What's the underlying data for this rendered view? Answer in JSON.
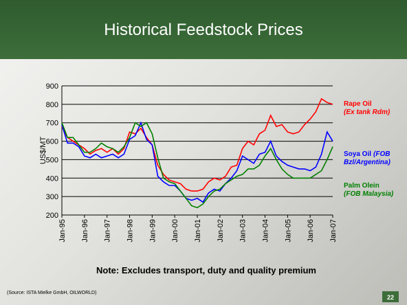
{
  "title": "Historical Feedstock Prices",
  "note": "Note: Excludes transport, duty and quality premium",
  "source": "(Source: ISTA Mielke GmbH, OILWORLD)",
  "page_number": "22",
  "chart_data": {
    "type": "line",
    "y_label": "US$/MT",
    "categories": [
      "Jan-95",
      null,
      null,
      null,
      "Jan-96",
      null,
      null,
      null,
      "Jan-97",
      null,
      null,
      null,
      "Jan-98",
      null,
      null,
      null,
      "Jan-99",
      null,
      null,
      null,
      "Jan-00",
      null,
      null,
      null,
      "Jan-01",
      null,
      null,
      null,
      "Jan-02",
      null,
      null,
      null,
      "Jan-03",
      null,
      null,
      null,
      "Jan-04",
      null,
      null,
      null,
      "Jan-05",
      null,
      null,
      null,
      "Jan-06",
      null,
      null,
      null,
      "Jan-07"
    ],
    "ylim": [
      200,
      900
    ],
    "yticks": [
      200,
      300,
      400,
      500,
      600,
      700,
      800,
      900
    ],
    "grid": true,
    "series": [
      {
        "name": "Rape Oil",
        "legend_note": [
          "(Ex tank Rdm)"
        ],
        "color": "#ff0000",
        "values": [
          680,
          620,
          600,
          580,
          560,
          530,
          550,
          560,
          540,
          560,
          530,
          560,
          650,
          640,
          670,
          620,
          580,
          470,
          420,
          390,
          380,
          370,
          340,
          330,
          330,
          340,
          380,
          400,
          390,
          410,
          460,
          470,
          560,
          600,
          580,
          640,
          660,
          740,
          680,
          690,
          650,
          640,
          650,
          690,
          720,
          760,
          830,
          810,
          800
        ]
      },
      {
        "name": "Soya Oil",
        "legend_note": [
          "(FOB",
          "Bzl/Argentina)"
        ],
        "color": "#0000ff",
        "values": [
          690,
          590,
          590,
          570,
          520,
          510,
          530,
          510,
          520,
          530,
          510,
          530,
          610,
          630,
          700,
          610,
          580,
          410,
          380,
          360,
          360,
          330,
          290,
          280,
          290,
          270,
          320,
          340,
          330,
          370,
          400,
          440,
          520,
          500,
          480,
          530,
          540,
          600,
          520,
          490,
          470,
          460,
          450,
          450,
          440,
          460,
          530,
          650,
          600
        ]
      },
      {
        "name": "Palm Olein",
        "legend_note": [
          "(FOB Malaysia)"
        ],
        "color": "#008000",
        "values": [
          700,
          620,
          620,
          580,
          540,
          540,
          560,
          590,
          570,
          560,
          540,
          570,
          620,
          700,
          680,
          700,
          640,
          510,
          400,
          380,
          370,
          330,
          290,
          250,
          240,
          260,
          300,
          330,
          340,
          370,
          390,
          410,
          420,
          450,
          450,
          470,
          520,
          560,
          500,
          450,
          420,
          400,
          400,
          400,
          400,
          420,
          440,
          500,
          570
        ]
      }
    ]
  }
}
